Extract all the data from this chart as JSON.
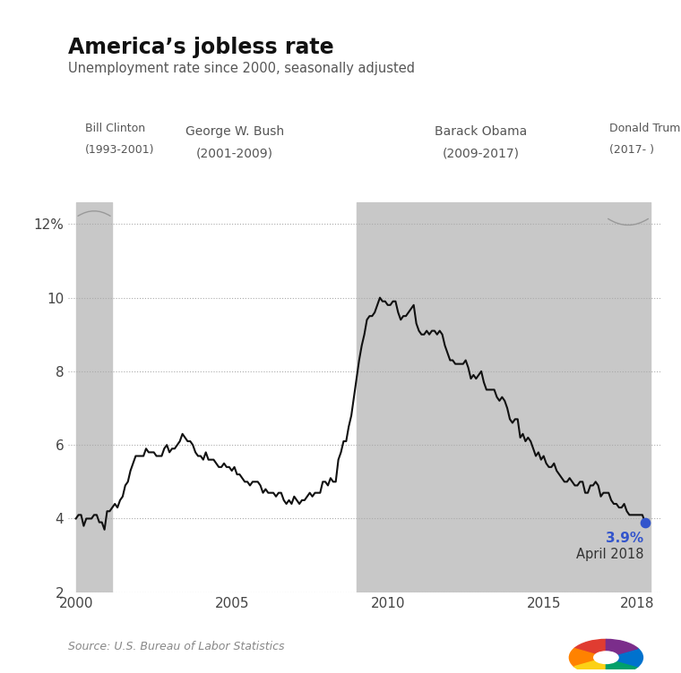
{
  "title": "America’s jobless rate",
  "subtitle": "Unemployment rate since 2000, seasonally adjusted",
  "source": "Source: U.S. Bureau of Labor Statistics",
  "annotation_value": "3.9%",
  "annotation_label": "April 2018",
  "annotation_color": "#3355cc",
  "line_color": "#111111",
  "bg_color": "#ffffff",
  "shade_color": "#c8c8c8",
  "presidents": [
    {
      "name": "Bill Clinton",
      "years": "(1993-2001)",
      "start": 2000.0,
      "end": 2001.17,
      "shaded": true,
      "bracket": true
    },
    {
      "name": "George W. Bush",
      "years": "(2001-2009)",
      "start": 2001.17,
      "end": 2009.0,
      "shaded": false,
      "bracket": false
    },
    {
      "name": "Barack Obama",
      "years": "(2009-2017)",
      "start": 2009.0,
      "end": 2017.0,
      "shaded": true,
      "bracket": false
    },
    {
      "name": "Donald Trump",
      "years": "(2017- )",
      "start": 2017.0,
      "end": 2018.42,
      "shaded": true,
      "bracket": true
    }
  ],
  "ylim": [
    2,
    12.6
  ],
  "xlim": [
    1999.75,
    2018.75
  ],
  "yticks": [
    2,
    4,
    6,
    8,
    10,
    12
  ],
  "ytick_labels": [
    "2",
    "4",
    "6",
    "8",
    "10",
    "12%"
  ],
  "xticks": [
    2000,
    2005,
    2010,
    2015,
    2018
  ],
  "data": [
    [
      2000.0,
      4.0
    ],
    [
      2000.083,
      4.1
    ],
    [
      2000.167,
      4.1
    ],
    [
      2000.25,
      3.8
    ],
    [
      2000.333,
      4.0
    ],
    [
      2000.417,
      4.0
    ],
    [
      2000.5,
      4.0
    ],
    [
      2000.583,
      4.1
    ],
    [
      2000.667,
      4.1
    ],
    [
      2000.75,
      3.9
    ],
    [
      2000.833,
      3.9
    ],
    [
      2000.917,
      3.7
    ],
    [
      2001.0,
      4.2
    ],
    [
      2001.083,
      4.2
    ],
    [
      2001.167,
      4.3
    ],
    [
      2001.25,
      4.4
    ],
    [
      2001.333,
      4.3
    ],
    [
      2001.417,
      4.5
    ],
    [
      2001.5,
      4.6
    ],
    [
      2001.583,
      4.9
    ],
    [
      2001.667,
      5.0
    ],
    [
      2001.75,
      5.3
    ],
    [
      2001.833,
      5.5
    ],
    [
      2001.917,
      5.7
    ],
    [
      2002.0,
      5.7
    ],
    [
      2002.083,
      5.7
    ],
    [
      2002.167,
      5.7
    ],
    [
      2002.25,
      5.9
    ],
    [
      2002.333,
      5.8
    ],
    [
      2002.417,
      5.8
    ],
    [
      2002.5,
      5.8
    ],
    [
      2002.583,
      5.7
    ],
    [
      2002.667,
      5.7
    ],
    [
      2002.75,
      5.7
    ],
    [
      2002.833,
      5.9
    ],
    [
      2002.917,
      6.0
    ],
    [
      2003.0,
      5.8
    ],
    [
      2003.083,
      5.9
    ],
    [
      2003.167,
      5.9
    ],
    [
      2003.25,
      6.0
    ],
    [
      2003.333,
      6.1
    ],
    [
      2003.417,
      6.3
    ],
    [
      2003.5,
      6.2
    ],
    [
      2003.583,
      6.1
    ],
    [
      2003.667,
      6.1
    ],
    [
      2003.75,
      6.0
    ],
    [
      2003.833,
      5.8
    ],
    [
      2003.917,
      5.7
    ],
    [
      2004.0,
      5.7
    ],
    [
      2004.083,
      5.6
    ],
    [
      2004.167,
      5.8
    ],
    [
      2004.25,
      5.6
    ],
    [
      2004.333,
      5.6
    ],
    [
      2004.417,
      5.6
    ],
    [
      2004.5,
      5.5
    ],
    [
      2004.583,
      5.4
    ],
    [
      2004.667,
      5.4
    ],
    [
      2004.75,
      5.5
    ],
    [
      2004.833,
      5.4
    ],
    [
      2004.917,
      5.4
    ],
    [
      2005.0,
      5.3
    ],
    [
      2005.083,
      5.4
    ],
    [
      2005.167,
      5.2
    ],
    [
      2005.25,
      5.2
    ],
    [
      2005.333,
      5.1
    ],
    [
      2005.417,
      5.0
    ],
    [
      2005.5,
      5.0
    ],
    [
      2005.583,
      4.9
    ],
    [
      2005.667,
      5.0
    ],
    [
      2005.75,
      5.0
    ],
    [
      2005.833,
      5.0
    ],
    [
      2005.917,
      4.9
    ],
    [
      2006.0,
      4.7
    ],
    [
      2006.083,
      4.8
    ],
    [
      2006.167,
      4.7
    ],
    [
      2006.25,
      4.7
    ],
    [
      2006.333,
      4.7
    ],
    [
      2006.417,
      4.6
    ],
    [
      2006.5,
      4.7
    ],
    [
      2006.583,
      4.7
    ],
    [
      2006.667,
      4.5
    ],
    [
      2006.75,
      4.4
    ],
    [
      2006.833,
      4.5
    ],
    [
      2006.917,
      4.4
    ],
    [
      2007.0,
      4.6
    ],
    [
      2007.083,
      4.5
    ],
    [
      2007.167,
      4.4
    ],
    [
      2007.25,
      4.5
    ],
    [
      2007.333,
      4.5
    ],
    [
      2007.417,
      4.6
    ],
    [
      2007.5,
      4.7
    ],
    [
      2007.583,
      4.6
    ],
    [
      2007.667,
      4.7
    ],
    [
      2007.75,
      4.7
    ],
    [
      2007.833,
      4.7
    ],
    [
      2007.917,
      5.0
    ],
    [
      2008.0,
      5.0
    ],
    [
      2008.083,
      4.9
    ],
    [
      2008.167,
      5.1
    ],
    [
      2008.25,
      5.0
    ],
    [
      2008.333,
      5.0
    ],
    [
      2008.417,
      5.6
    ],
    [
      2008.5,
      5.8
    ],
    [
      2008.583,
      6.1
    ],
    [
      2008.667,
      6.1
    ],
    [
      2008.75,
      6.5
    ],
    [
      2008.833,
      6.8
    ],
    [
      2008.917,
      7.3
    ],
    [
      2009.0,
      7.8
    ],
    [
      2009.083,
      8.3
    ],
    [
      2009.167,
      8.7
    ],
    [
      2009.25,
      9.0
    ],
    [
      2009.333,
      9.4
    ],
    [
      2009.417,
      9.5
    ],
    [
      2009.5,
      9.5
    ],
    [
      2009.583,
      9.6
    ],
    [
      2009.667,
      9.8
    ],
    [
      2009.75,
      10.0
    ],
    [
      2009.833,
      9.9
    ],
    [
      2009.917,
      9.9
    ],
    [
      2010.0,
      9.8
    ],
    [
      2010.083,
      9.8
    ],
    [
      2010.167,
      9.9
    ],
    [
      2010.25,
      9.9
    ],
    [
      2010.333,
      9.6
    ],
    [
      2010.417,
      9.4
    ],
    [
      2010.5,
      9.5
    ],
    [
      2010.583,
      9.5
    ],
    [
      2010.667,
      9.6
    ],
    [
      2010.75,
      9.7
    ],
    [
      2010.833,
      9.8
    ],
    [
      2010.917,
      9.3
    ],
    [
      2011.0,
      9.1
    ],
    [
      2011.083,
      9.0
    ],
    [
      2011.167,
      9.0
    ],
    [
      2011.25,
      9.1
    ],
    [
      2011.333,
      9.0
    ],
    [
      2011.417,
      9.1
    ],
    [
      2011.5,
      9.1
    ],
    [
      2011.583,
      9.0
    ],
    [
      2011.667,
      9.1
    ],
    [
      2011.75,
      9.0
    ],
    [
      2011.833,
      8.7
    ],
    [
      2011.917,
      8.5
    ],
    [
      2012.0,
      8.3
    ],
    [
      2012.083,
      8.3
    ],
    [
      2012.167,
      8.2
    ],
    [
      2012.25,
      8.2
    ],
    [
      2012.333,
      8.2
    ],
    [
      2012.417,
      8.2
    ],
    [
      2012.5,
      8.3
    ],
    [
      2012.583,
      8.1
    ],
    [
      2012.667,
      7.8
    ],
    [
      2012.75,
      7.9
    ],
    [
      2012.833,
      7.8
    ],
    [
      2012.917,
      7.9
    ],
    [
      2013.0,
      8.0
    ],
    [
      2013.083,
      7.7
    ],
    [
      2013.167,
      7.5
    ],
    [
      2013.25,
      7.5
    ],
    [
      2013.333,
      7.5
    ],
    [
      2013.417,
      7.5
    ],
    [
      2013.5,
      7.3
    ],
    [
      2013.583,
      7.2
    ],
    [
      2013.667,
      7.3
    ],
    [
      2013.75,
      7.2
    ],
    [
      2013.833,
      7.0
    ],
    [
      2013.917,
      6.7
    ],
    [
      2014.0,
      6.6
    ],
    [
      2014.083,
      6.7
    ],
    [
      2014.167,
      6.7
    ],
    [
      2014.25,
      6.2
    ],
    [
      2014.333,
      6.3
    ],
    [
      2014.417,
      6.1
    ],
    [
      2014.5,
      6.2
    ],
    [
      2014.583,
      6.1
    ],
    [
      2014.667,
      5.9
    ],
    [
      2014.75,
      5.7
    ],
    [
      2014.833,
      5.8
    ],
    [
      2014.917,
      5.6
    ],
    [
      2015.0,
      5.7
    ],
    [
      2015.083,
      5.5
    ],
    [
      2015.167,
      5.4
    ],
    [
      2015.25,
      5.4
    ],
    [
      2015.333,
      5.5
    ],
    [
      2015.417,
      5.3
    ],
    [
      2015.5,
      5.2
    ],
    [
      2015.583,
      5.1
    ],
    [
      2015.667,
      5.0
    ],
    [
      2015.75,
      5.0
    ],
    [
      2015.833,
      5.1
    ],
    [
      2015.917,
      5.0
    ],
    [
      2016.0,
      4.9
    ],
    [
      2016.083,
      4.9
    ],
    [
      2016.167,
      5.0
    ],
    [
      2016.25,
      5.0
    ],
    [
      2016.333,
      4.7
    ],
    [
      2016.417,
      4.7
    ],
    [
      2016.5,
      4.9
    ],
    [
      2016.583,
      4.9
    ],
    [
      2016.667,
      5.0
    ],
    [
      2016.75,
      4.9
    ],
    [
      2016.833,
      4.6
    ],
    [
      2016.917,
      4.7
    ],
    [
      2017.0,
      4.7
    ],
    [
      2017.083,
      4.7
    ],
    [
      2017.167,
      4.5
    ],
    [
      2017.25,
      4.4
    ],
    [
      2017.333,
      4.4
    ],
    [
      2017.417,
      4.3
    ],
    [
      2017.5,
      4.3
    ],
    [
      2017.583,
      4.4
    ],
    [
      2017.667,
      4.2
    ],
    [
      2017.75,
      4.1
    ],
    [
      2017.833,
      4.1
    ],
    [
      2017.917,
      4.1
    ],
    [
      2018.0,
      4.1
    ],
    [
      2018.083,
      4.1
    ],
    [
      2018.167,
      4.1
    ],
    [
      2018.25,
      3.9
    ]
  ]
}
